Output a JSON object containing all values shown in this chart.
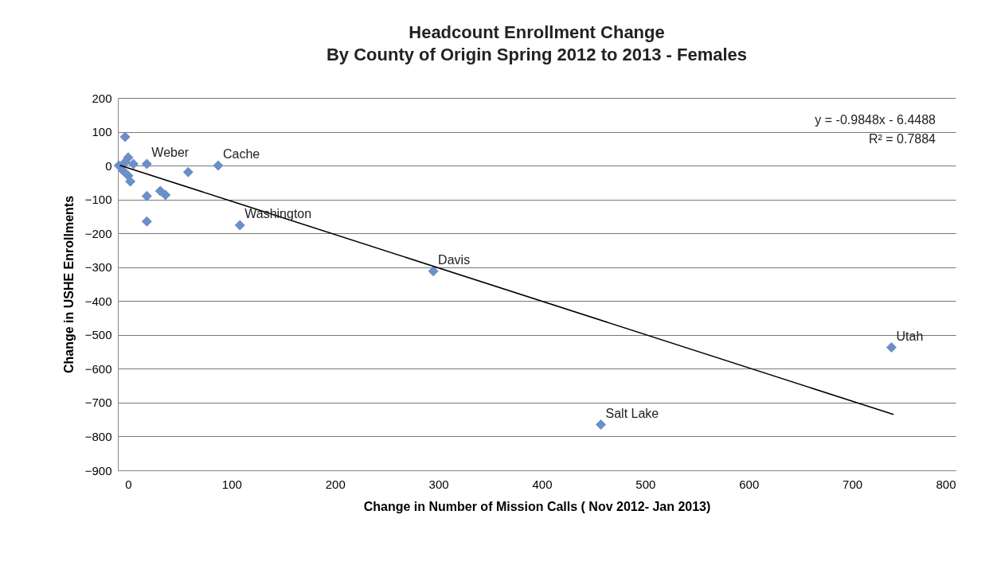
{
  "chart_data": {
    "type": "scatter",
    "title": "Headcount Enrollment Change",
    "subtitle": "By County of Origin Spring 2012 to 2013 - Females",
    "xlabel": "Change in Number of  Mission Calls ( Nov 2012- Jan 2013)",
    "ylabel": "Change in USHE Enrollments",
    "xlim": [
      -10,
      800
    ],
    "xticks": [
      0,
      100,
      200,
      300,
      400,
      500,
      600,
      700,
      800
    ],
    "ylim": [
      -900,
      200
    ],
    "yticks": [
      -900,
      -800,
      -700,
      -600,
      -500,
      -400,
      -300,
      -200,
      -100,
      0,
      100,
      200
    ],
    "grid": "y",
    "marker": "diamond",
    "series": [
      {
        "color": "#6b8fc6",
        "x": [
          -3,
          0,
          -9,
          -3,
          -5,
          0,
          2,
          5,
          18,
          58,
          87,
          18,
          31,
          36,
          18,
          108,
          295,
          457,
          738
        ],
        "values": [
          85,
          24,
          0,
          10,
          -15,
          -30,
          -47,
          5,
          5,
          -19,
          0,
          -90,
          -75,
          -87,
          -165,
          -176,
          -312,
          -765,
          -537
        ]
      },
      {
        "type": "line",
        "color": "#000000",
        "marker": "none",
        "x": [
          -8,
          740
        ],
        "values": [
          1,
          -735
        ]
      }
    ],
    "annotations": [
      {
        "text": "Weber",
        "x": 18,
        "y": 5
      },
      {
        "text": "Cache",
        "x": 87,
        "y": 0
      },
      {
        "text": "Washington",
        "x": 108,
        "y": -176
      },
      {
        "text": "Davis",
        "x": 295,
        "y": -312
      },
      {
        "text": "Salt Lake",
        "x": 457,
        "y": -765
      },
      {
        "text": "Utah",
        "x": 738,
        "y": -537
      },
      "y = -0.9848x - 6.4488",
      "R² = 0.7884"
    ]
  }
}
